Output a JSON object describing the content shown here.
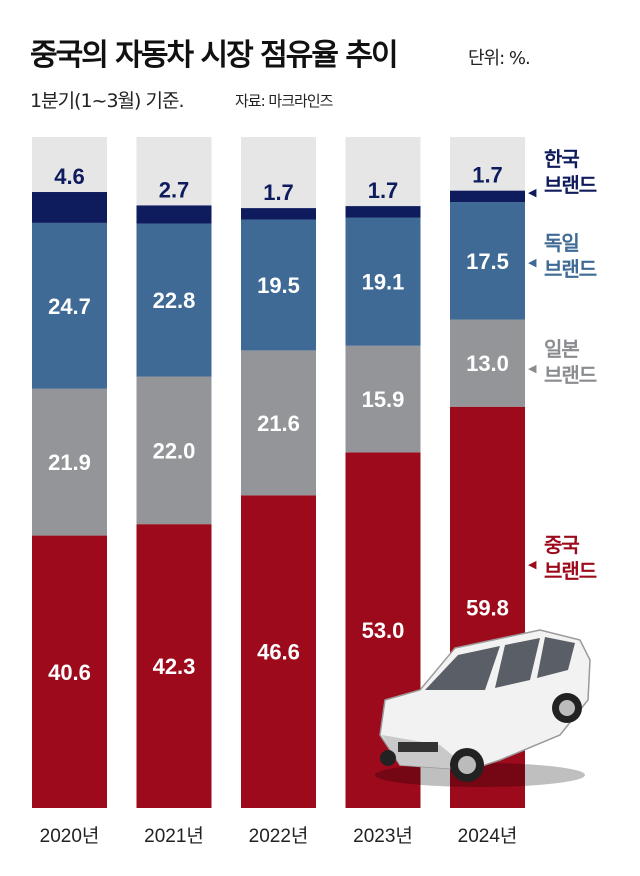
{
  "chart_data": {
    "type": "bar",
    "stacked": true,
    "title": "중국의 자동차 시장 점유율 추이",
    "unit": "단위: %.",
    "subtitle": "1분기(1~3월) 기준.",
    "source": "자료: 마크라인즈",
    "categories": [
      "2020년",
      "2021년",
      "2022년",
      "2023년",
      "2024년"
    ],
    "ylim": [
      0,
      100
    ],
    "series": [
      {
        "name": "중국 브랜드",
        "name_lines": [
          "중국",
          "브랜드"
        ],
        "color": "#9c0a1b",
        "values": [
          40.6,
          42.3,
          46.6,
          53.0,
          59.8
        ]
      },
      {
        "name": "일본 브랜드",
        "name_lines": [
          "일본",
          "브랜드"
        ],
        "color": "#939598",
        "values": [
          21.9,
          22.0,
          21.6,
          15.9,
          13.0
        ]
      },
      {
        "name": "독일 브랜드",
        "name_lines": [
          "독일",
          "브랜드"
        ],
        "color": "#3f6a96",
        "values": [
          24.7,
          22.8,
          19.5,
          19.1,
          17.5
        ]
      },
      {
        "name": "한국 브랜드",
        "name_lines": [
          "한국",
          "브랜드"
        ],
        "color": "#0e1b5c",
        "values": [
          4.6,
          2.7,
          1.7,
          1.7,
          1.7
        ]
      }
    ],
    "background_color": "#e6e6e6"
  }
}
